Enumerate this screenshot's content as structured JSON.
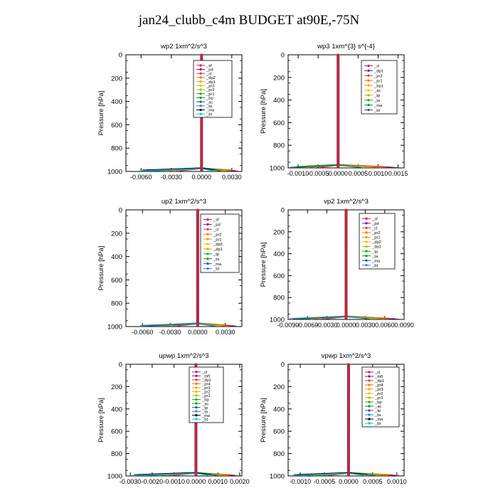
{
  "figure": {
    "title": "jan24_clubb_c4m  BUDGET at90E,-75N"
  },
  "chart_data": [
    {
      "type": "line",
      "title": "wp2   1xm^2/s^3",
      "ylabel": "Pressure [hPa]",
      "xlim": [
        -0.0075,
        0.004
      ],
      "ylim": [
        1000,
        0
      ],
      "xticks": [
        "-0.0060",
        "-0.0030",
        "0.0000",
        "0.0030"
      ],
      "xtick_values": [
        -0.006,
        -0.003,
        0.0,
        0.003
      ],
      "yticks": [
        "0",
        "200",
        "400",
        "600",
        "800",
        "1000"
      ],
      "legend": [
        "_sf",
        "_pd",
        "_cl",
        "_dp2",
        "_dp1",
        "_pr3",
        "_pr2",
        "_pr1",
        "_bp",
        "_ac",
        "_ta",
        "_ma",
        "_bt"
      ],
      "legend_position": "top-right",
      "surface_min": -0.0062,
      "surface_max": 0.0038
    },
    {
      "type": "line",
      "title": "wp3   1xm^{3} s^{-4}",
      "ylabel": "Pressure [hPa]",
      "xlim": [
        -0.00125,
        0.00165
      ],
      "ylim": [
        1000,
        0
      ],
      "xticks": [
        "-0.0010",
        "-0.0005",
        "0.0000",
        "0.0005",
        "0.0010",
        "0.0015"
      ],
      "xtick_values": [
        -0.001,
        -0.0005,
        0.0,
        0.0005,
        0.001,
        0.0015
      ],
      "yticks": [
        "0",
        "200",
        "400",
        "600",
        "800",
        "1000"
      ],
      "legend": [
        "_cl",
        "_dp1",
        "_pr2",
        "_pr1",
        "_bp1",
        "_ac",
        "_tp",
        "_ta",
        "_ma",
        "_bt"
      ],
      "legend_position": "top-right",
      "surface_min": -0.0012,
      "surface_max": 0.0016
    },
    {
      "type": "line",
      "title": "up2   1xm^2/s^3",
      "ylabel": "Pressure [hPa]",
      "xlim": [
        -0.0078,
        0.0048
      ],
      "ylim": [
        1000,
        0
      ],
      "xticks": [
        "-0.0060",
        "-0.0030",
        "0.0000",
        "0.0030"
      ],
      "xtick_values": [
        -0.006,
        -0.003,
        0.0,
        0.003
      ],
      "yticks": [
        "0",
        "200",
        "400",
        "600",
        "800",
        "1000"
      ],
      "legend": [
        "_sf",
        "_pd",
        "_cl",
        "_pr2",
        "_pr1",
        "_dp2",
        "_dp1",
        "_tp",
        "_ta",
        "_ma",
        "_bt"
      ],
      "legend_position": "top-right",
      "surface_min": -0.0063,
      "surface_max": 0.0045
    },
    {
      "type": "line",
      "title": "vp2   1xm^2/s^3",
      "ylabel": "Pressure [hPa]",
      "xlim": [
        -0.009,
        0.009
      ],
      "ylim": [
        1000,
        0
      ],
      "xticks": [
        "-0.0090",
        "-0.0060",
        "-0.0030",
        "0.0000",
        "0.0030",
        "0.0060",
        "0.0090"
      ],
      "xtick_values": [
        -0.009,
        -0.006,
        -0.003,
        0.0,
        0.003,
        0.006,
        0.009
      ],
      "yticks": [
        "0",
        "200",
        "400",
        "600",
        "800",
        "1000"
      ],
      "legend": [
        "_sf",
        "_pd",
        "_cl",
        "_pr2",
        "_pr1",
        "_dp2",
        "_dp1",
        "_tp",
        "_ta",
        "_ma",
        "_bt"
      ],
      "legend_position": "top-right",
      "surface_min": -0.0088,
      "surface_max": 0.0088
    },
    {
      "type": "line",
      "title": "upwp   1xm^2/s^3",
      "ylabel": "Pressure [hPa]",
      "xlim": [
        -0.0032,
        0.0021
      ],
      "ylim": [
        1000,
        0
      ],
      "xticks": [
        "-0.0030",
        "-0.0020",
        "-0.0010",
        "0.0000",
        "0.0010",
        "0.0020"
      ],
      "xtick_values": [
        -0.003,
        -0.002,
        -0.001,
        0.0,
        0.001,
        0.002
      ],
      "yticks": [
        "0",
        "200",
        "400",
        "600",
        "800",
        "1000"
      ],
      "legend": [
        "_cl",
        "_mfl",
        "_dp1",
        "_pr4",
        "_pr3",
        "_pr2",
        "_pr1",
        "_bp",
        "_ac",
        "_tp",
        "_ta",
        "_ma",
        "_bt"
      ],
      "legend_position": "top-right",
      "surface_min": -0.003,
      "surface_max": 0.002
    },
    {
      "type": "line",
      "title": "vpwp   1xm^2/s^3",
      "ylabel": "Pressure [hPa]",
      "xlim": [
        -0.00125,
        0.00115
      ],
      "ylim": [
        1000,
        0
      ],
      "xticks": [
        "-0.0010",
        "-0.0005",
        "0.0000",
        "0.0005",
        "0.0010"
      ],
      "xtick_values": [
        -0.001,
        -0.0005,
        0.0,
        0.0005,
        0.001
      ],
      "yticks": [
        "0",
        "200",
        "400",
        "600",
        "800",
        "1000"
      ],
      "legend": [
        "_cl",
        "_mfl",
        "_dp1",
        "_pr4",
        "_pr3",
        "_pr2",
        "_pr1",
        "_bp",
        "_ac",
        "_tp",
        "_ta",
        "_ma",
        "_bt"
      ],
      "legend_position": "top-right",
      "surface_min": -0.0012,
      "surface_max": 0.0011
    }
  ],
  "colors": {
    "series": [
      "#d4145a",
      "#6a1b9a",
      "#e53935",
      "#ff6f00",
      "#ff9800",
      "#e6c200",
      "#b5b500",
      "#2e9e2e",
      "#00a000",
      "#3949ab",
      "#1e88e5",
      "#000000",
      "#00c8e6"
    ],
    "profile": "#c62828",
    "profile_edge": "#6a1b9a",
    "axis": "#000000"
  }
}
